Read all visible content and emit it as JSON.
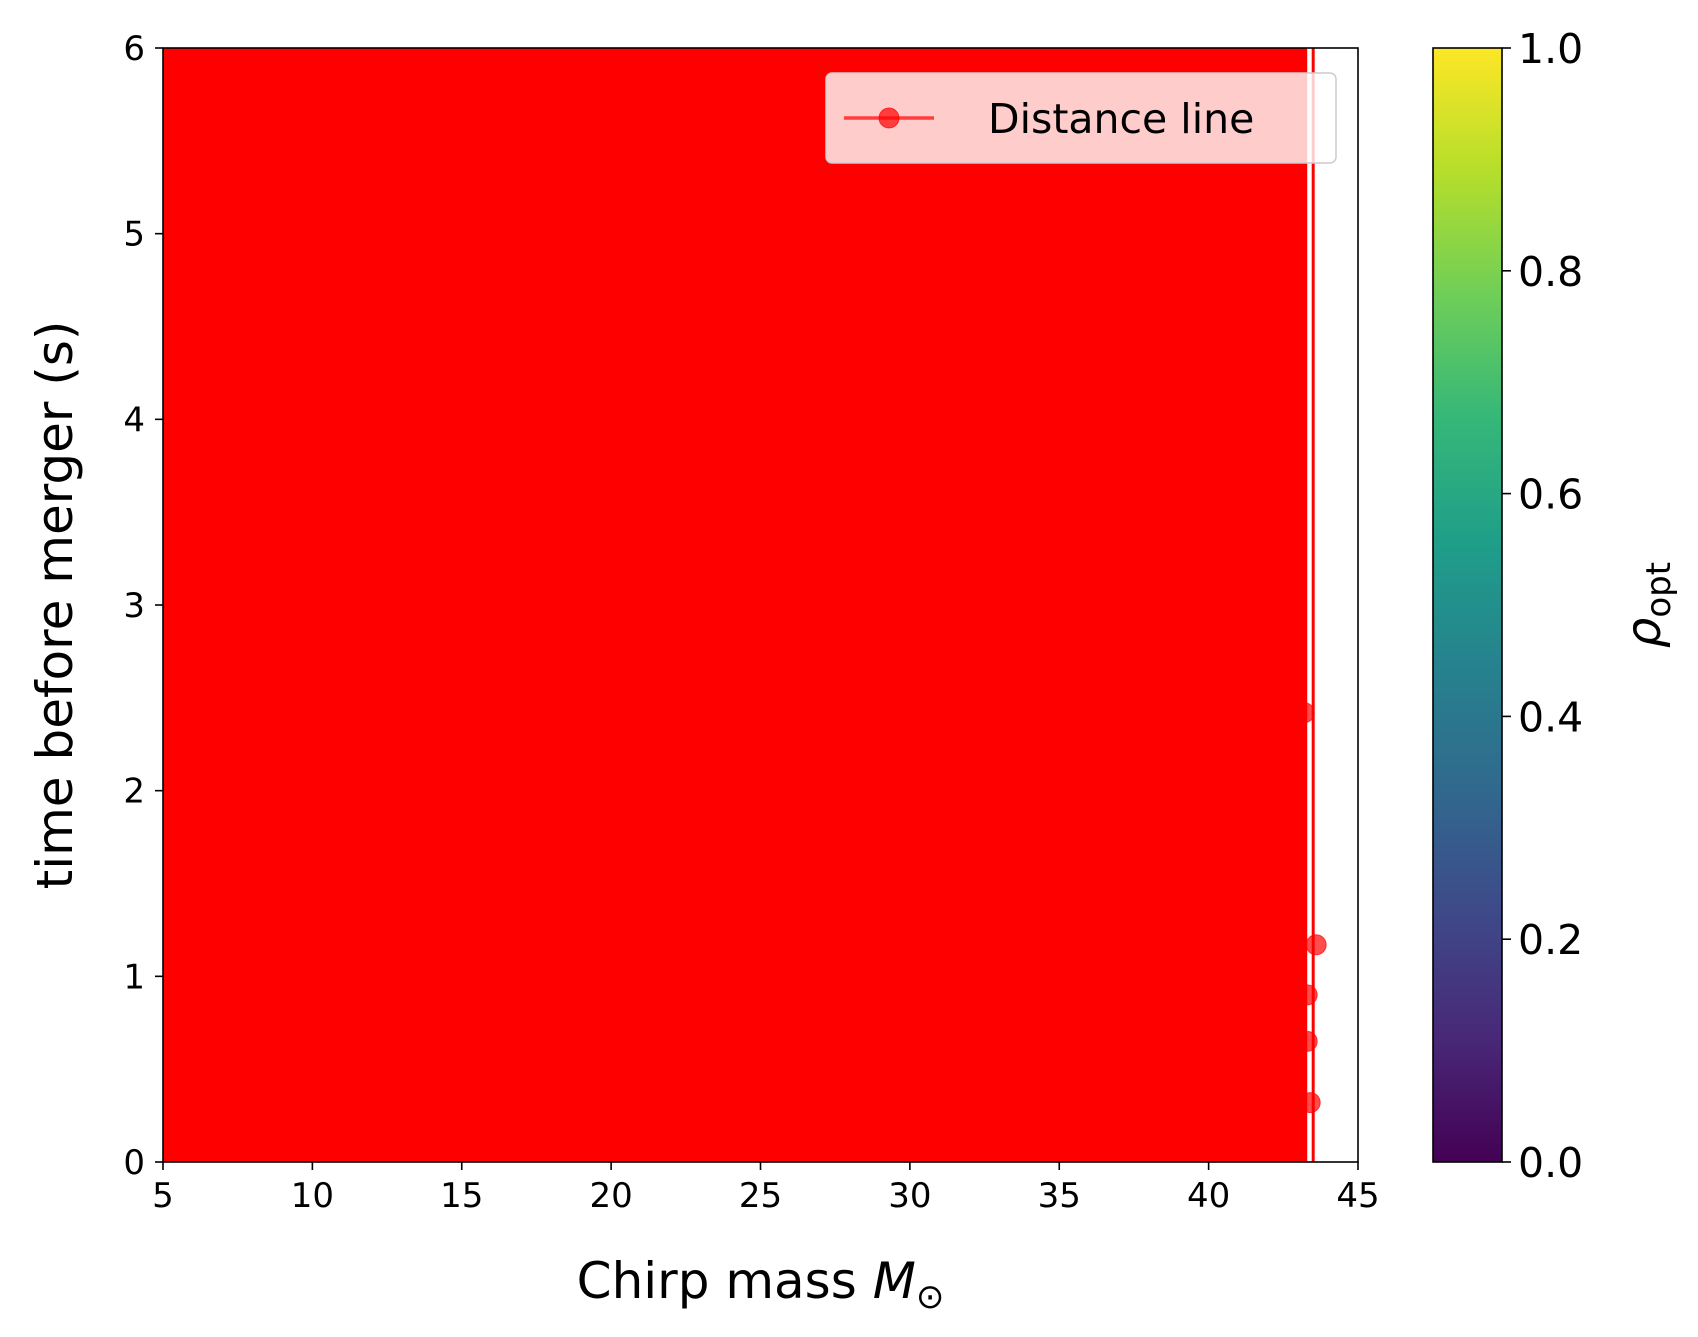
{
  "chart_data": {
    "type": "line",
    "xlabel": "Chirp mass",
    "xlabel_symbol": "M",
    "xlabel_subscript": "⊙",
    "ylabel": "time before merger (s)",
    "xlim": [
      5,
      45
    ],
    "ylim": [
      0,
      6
    ],
    "xticks": [
      "5",
      "10",
      "15",
      "20",
      "25",
      "30",
      "35",
      "40",
      "45"
    ],
    "yticks": [
      "0",
      "1",
      "2",
      "3",
      "4",
      "5",
      "6"
    ],
    "filled_region": {
      "x_from": 5,
      "x_to": 43.3,
      "y_from": 0,
      "y_to": 6,
      "color": "#ff0000"
    },
    "vertical_line": {
      "x": 43.5,
      "color": "#ff0000"
    },
    "series": [
      {
        "name": "Distance line",
        "color": "#ff0000",
        "alpha": 0.7,
        "marker": "circle",
        "points": [
          {
            "x": 43.6,
            "y": 1.17
          },
          {
            "x": 43.3,
            "y": 0.9
          },
          {
            "x": 43.3,
            "y": 0.65
          },
          {
            "x": 43.4,
            "y": 0.32
          },
          {
            "x": 43.2,
            "y": 2.42
          }
        ]
      }
    ],
    "legend": {
      "position": "top-right"
    },
    "colorbar": {
      "label_symbol": "ρ",
      "label_subscript": "opt",
      "range": [
        0.0,
        1.0
      ],
      "ticks": [
        "0.0",
        "0.2",
        "0.4",
        "0.6",
        "0.8",
        "1.0"
      ],
      "colormap": "viridis",
      "stops": [
        "#440154",
        "#482878",
        "#3e4989",
        "#31688e",
        "#26828e",
        "#1f9e89",
        "#35b779",
        "#6ece58",
        "#b5de2b",
        "#fde725"
      ]
    }
  }
}
